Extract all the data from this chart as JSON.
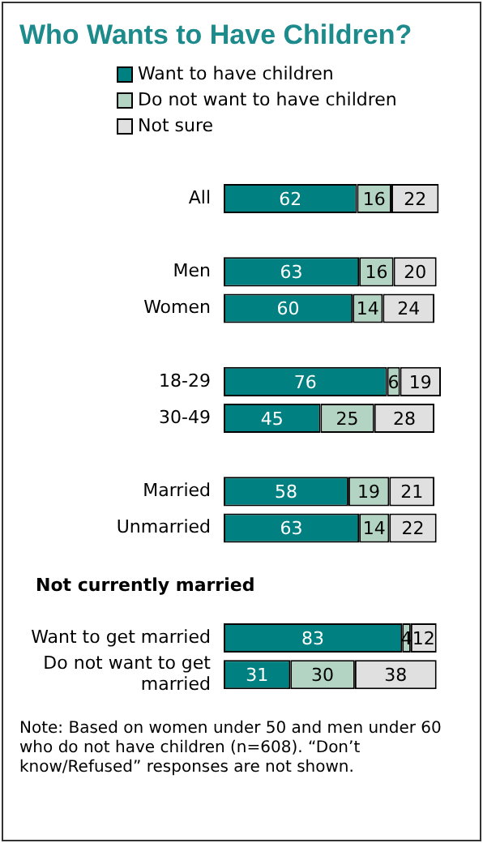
{
  "chart_data": {
    "type": "bar",
    "orientation": "horizontal",
    "stacked": true,
    "title": "Who Wants to Have Children?",
    "categories": [
      "All",
      null,
      "Men",
      "Women",
      null,
      "18-29",
      "30-49",
      null,
      "Married",
      "Unmarried",
      null,
      null,
      "Want to get married",
      "Do not want to get married"
    ],
    "series": [
      {
        "name": "Want to have children",
        "color": "#008080",
        "values": [
          62,
          null,
          63,
          60,
          null,
          76,
          45,
          null,
          58,
          63,
          null,
          null,
          83,
          31
        ]
      },
      {
        "name": "Do not want to have children",
        "color": "#b3d4c3",
        "values": [
          16,
          null,
          16,
          14,
          null,
          6,
          25,
          null,
          19,
          14,
          null,
          null,
          4,
          30
        ]
      },
      {
        "name": "Not sure",
        "color": "#e0e0e0",
        "values": [
          22,
          null,
          20,
          24,
          null,
          19,
          28,
          null,
          21,
          22,
          null,
          null,
          12,
          38
        ]
      }
    ],
    "xlim": [
      0,
      101
    ],
    "tick_labels": "y",
    "legend": "top",
    "data_labels": true,
    "annotations": [
      "Not currently married",
      "Note: Based on women under 50 and men under 60 who do not have children (n=608). “Don’t know/Refused” responses are not shown."
    ]
  }
}
